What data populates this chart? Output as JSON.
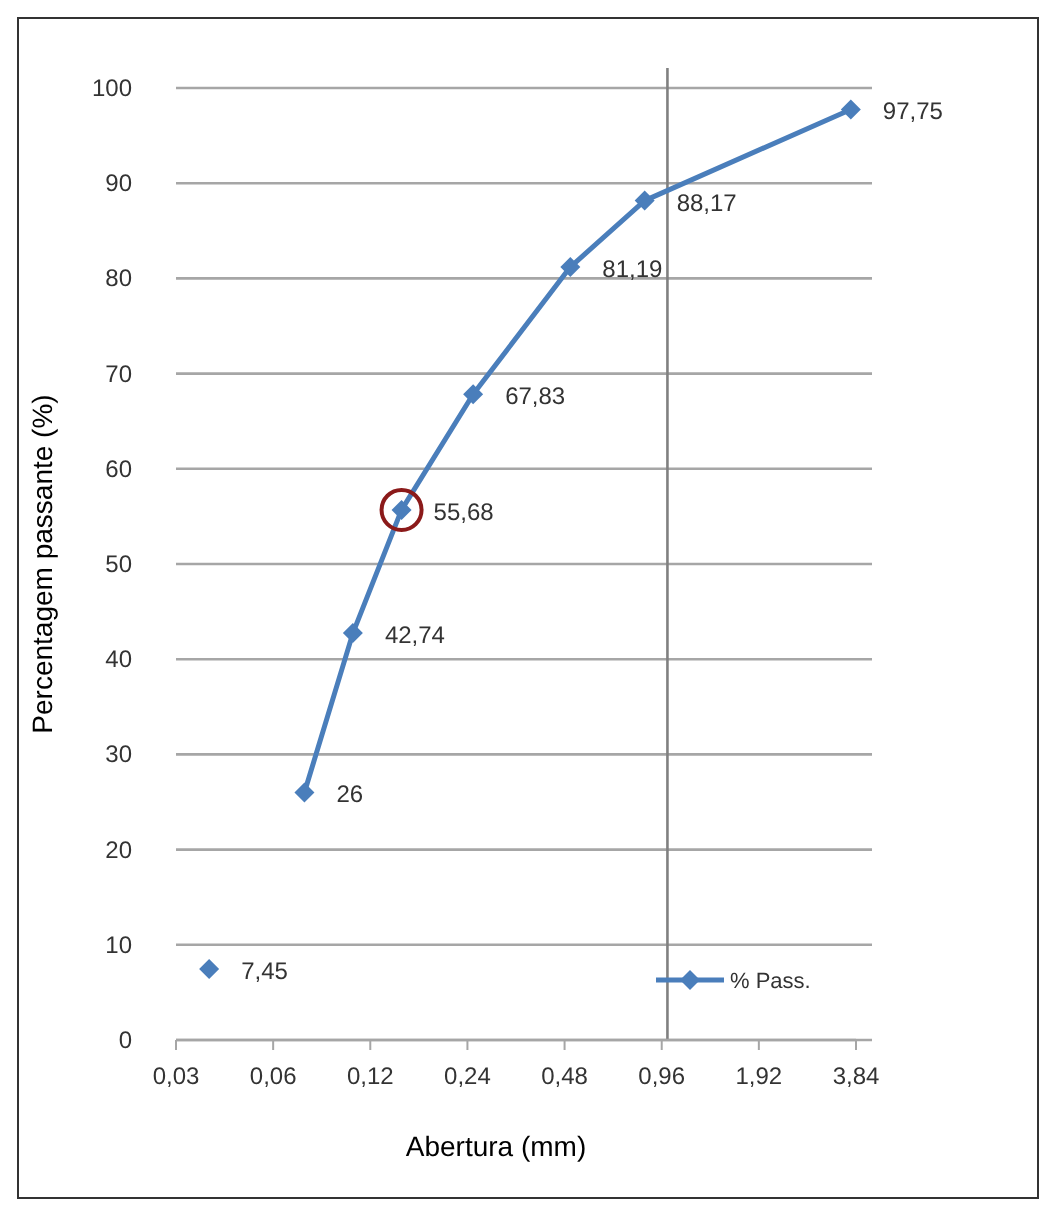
{
  "chart_data": {
    "type": "line",
    "xlabel": "Abertura (mm)",
    "ylabel": "Percentagem passante (%)",
    "log": "x",
    "xlim": [
      0.03,
      3.84
    ],
    "xticks": [
      {
        "value": 0.03,
        "label": "0,03"
      },
      {
        "value": 0.06,
        "label": "0,06"
      },
      {
        "value": 0.12,
        "label": "0,12"
      },
      {
        "value": 0.24,
        "label": "0,24"
      },
      {
        "value": 0.48,
        "label": "0,48"
      },
      {
        "value": 0.96,
        "label": "0,96"
      },
      {
        "value": 1.92,
        "label": "1,92"
      },
      {
        "value": 3.84,
        "label": "3,84"
      }
    ],
    "ylim": [
      0,
      100
    ],
    "yticks": [
      0,
      10,
      20,
      30,
      40,
      50,
      60,
      70,
      80,
      90,
      100
    ],
    "grid": "y",
    "legend": "bottom right",
    "marker": "diamond",
    "line_style": "solid",
    "series": [
      {
        "type": "scatter",
        "color": "#4a7ebb",
        "x": [
          0.038
        ],
        "values": [
          7.45
        ],
        "value_labels": [
          "7,45"
        ]
      },
      {
        "name": "% Pass.",
        "color": "#4a7ebb",
        "x": [
          0.075,
          0.106,
          0.15,
          0.25,
          0.5,
          0.85,
          3.7
        ],
        "values": [
          26,
          42.74,
          55.68,
          67.83,
          81.19,
          88.17,
          97.75
        ],
        "value_labels": [
          "26",
          "42,74",
          "55,68",
          "67,83",
          "81,19",
          "88,17",
          "97,75"
        ]
      }
    ],
    "ref_lines": [
      {
        "axis": "x",
        "value": 1,
        "color": "#808080"
      }
    ]
  }
}
